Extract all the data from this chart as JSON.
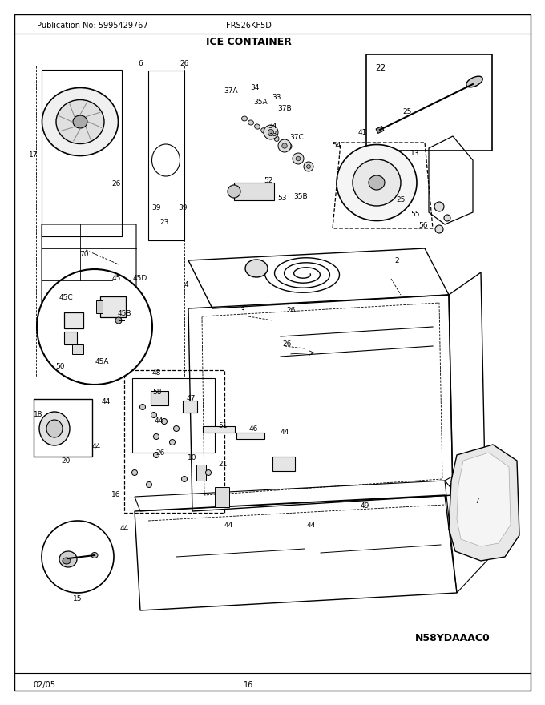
{
  "title": "ICE CONTAINER",
  "pub_no": "Publication No: 5995429767",
  "model": "FRS26KF5D",
  "date": "02/05",
  "page": "16",
  "part_code": "N58YDAAAC0",
  "fig_width": 6.8,
  "fig_height": 8.8,
  "dpi": 100,
  "bg_color": "#ffffff",
  "line_color": "#000000",
  "text_color": "#000000"
}
